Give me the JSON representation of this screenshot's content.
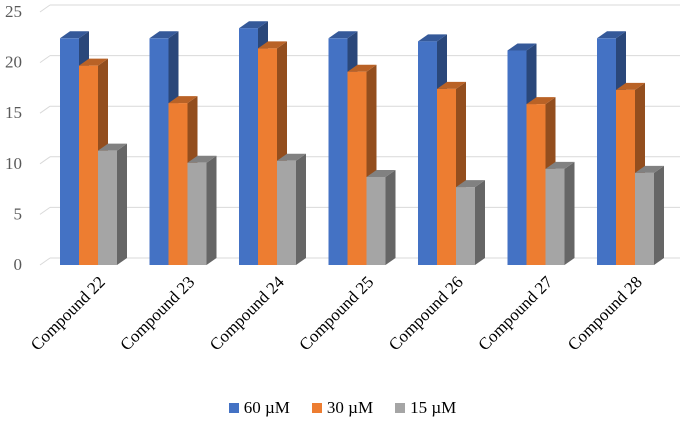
{
  "chart_data": {
    "type": "bar",
    "title": "",
    "xlabel": "",
    "ylabel": "",
    "ylim": [
      0,
      25
    ],
    "yticks": [
      "0",
      "5",
      "10",
      "15",
      "20",
      "25"
    ],
    "grid": true,
    "legend_position": "bottom",
    "categories": [
      "Compound 22",
      "Compound 23",
      "Compound 24",
      "Compound 25",
      "Compound 26",
      "Compound 27",
      "Compound 28"
    ],
    "series": [
      {
        "name": "60 µM",
        "color": "#4472c4",
        "values": [
          22.4,
          22.4,
          23.4,
          22.4,
          22.1,
          21.2,
          22.4
        ]
      },
      {
        "name": "30 µM",
        "color": "#ed7d31",
        "values": [
          19.7,
          16.0,
          21.4,
          19.1,
          17.4,
          15.9,
          17.3
        ]
      },
      {
        "name": "15 µM",
        "color": "#a5a5a5",
        "values": [
          11.3,
          10.1,
          10.3,
          8.7,
          7.7,
          9.5,
          9.1
        ]
      }
    ]
  }
}
